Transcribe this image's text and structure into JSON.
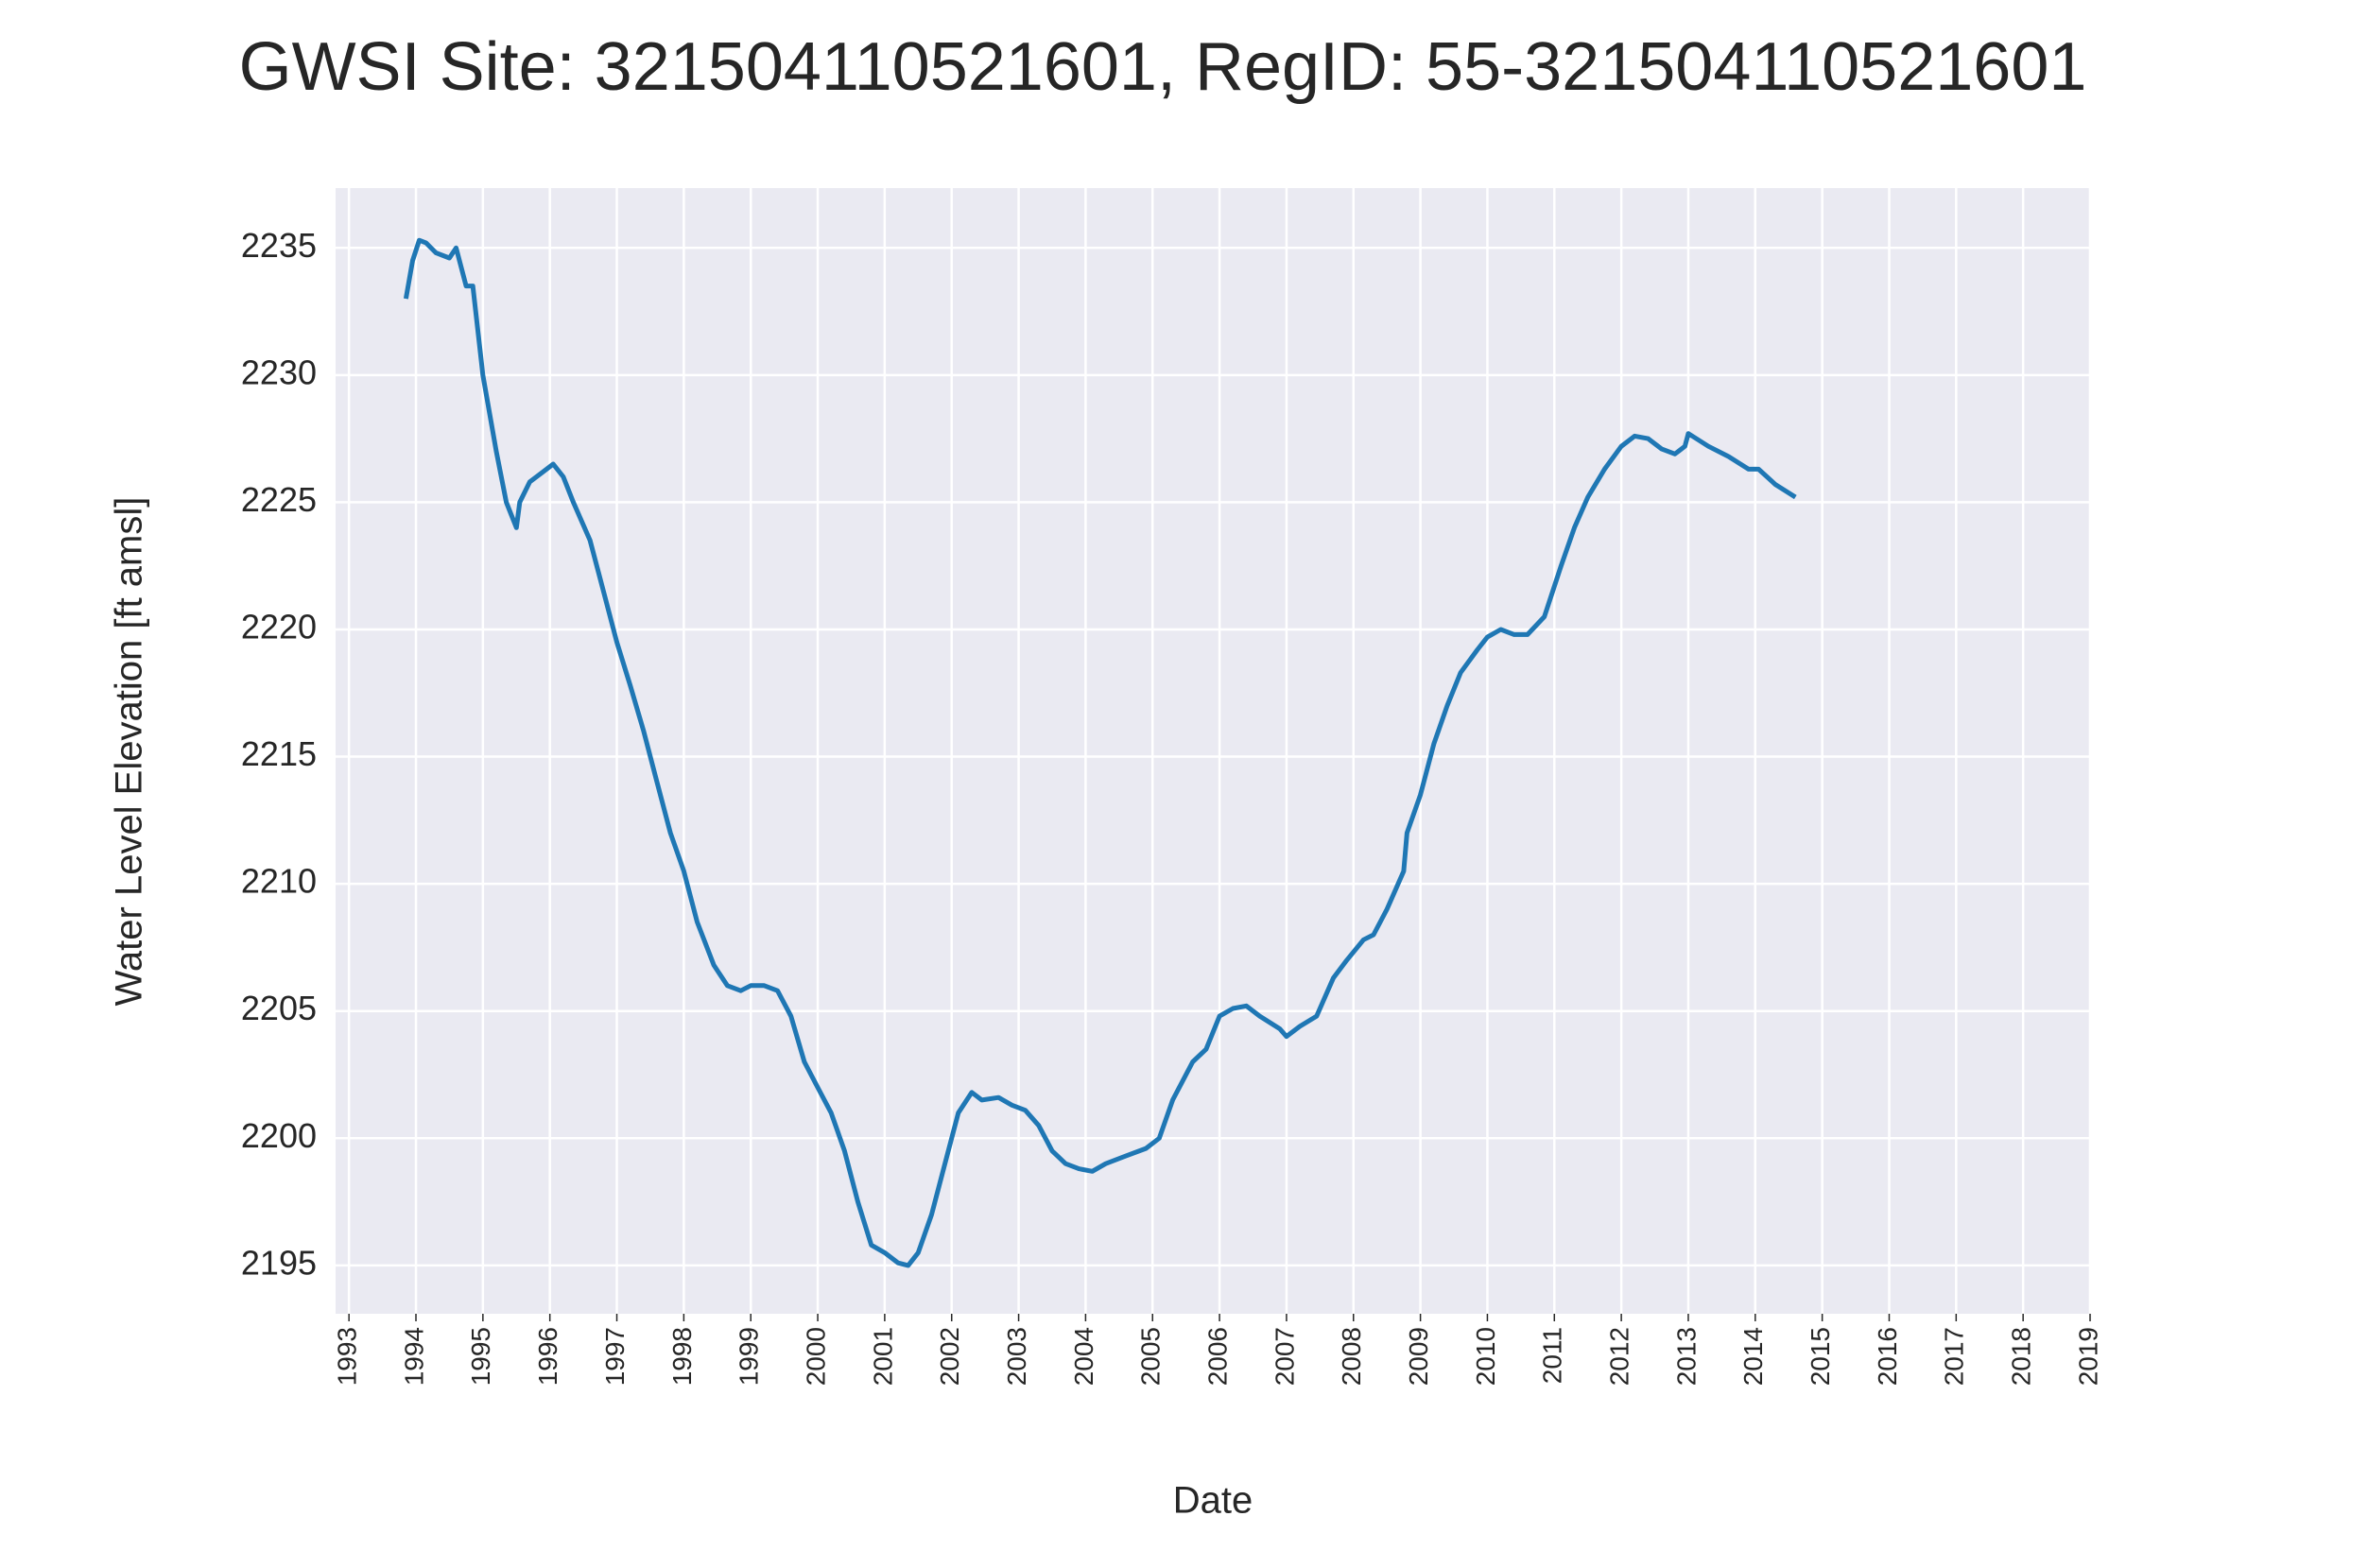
{
  "chart_data": {
    "type": "line",
    "title": "GWSI Site: 321504110521601, RegID: 55-321504110521601",
    "x_label": "Date",
    "y_label": "Water Level Elevation [ft amsl]",
    "color": "#1f77b4",
    "grid": true,
    "x": [
      1993.85,
      1993.95,
      1994.05,
      1994.15,
      1994.3,
      1994.5,
      1994.6,
      1994.75,
      1994.85,
      1995.0,
      1995.2,
      1995.35,
      1995.5,
      1995.55,
      1995.7,
      1995.9,
      1996.05,
      1996.2,
      1996.35,
      1996.6,
      1996.8,
      1997.0,
      1997.2,
      1997.4,
      1997.6,
      1997.8,
      1998.0,
      1998.2,
      1998.45,
      1998.65,
      1998.85,
      1999.0,
      1999.2,
      1999.4,
      1999.6,
      1999.8,
      2000.0,
      2000.2,
      2000.4,
      2000.6,
      2000.8,
      2001.0,
      2001.2,
      2001.35,
      2001.5,
      2001.7,
      2001.9,
      2002.1,
      2002.3,
      2002.45,
      2002.7,
      2002.9,
      2003.1,
      2003.3,
      2003.5,
      2003.7,
      2003.9,
      2004.1,
      2004.3,
      2004.6,
      2004.9,
      2005.1,
      2005.3,
      2005.6,
      2005.8,
      2006.0,
      2006.2,
      2006.4,
      2006.6,
      2006.9,
      2007.0,
      2007.2,
      2007.45,
      2007.7,
      2007.9,
      2008.15,
      2008.3,
      2008.5,
      2008.75,
      2008.8,
      2009.0,
      2009.2,
      2009.4,
      2009.6,
      2009.85,
      2010.0,
      2010.2,
      2010.4,
      2010.6,
      2010.85,
      2011.1,
      2011.3,
      2011.5,
      2011.75,
      2012.0,
      2012.2,
      2012.4,
      2012.6,
      2012.8,
      2012.95,
      2013.0,
      2013.3,
      2013.6,
      2013.9,
      2014.05,
      2014.3,
      2014.6
    ],
    "values": [
      2233,
      2234.5,
      2235.3,
      2235.2,
      2234.8,
      2234.6,
      2235,
      2233.5,
      2233.5,
      2230,
      2227,
      2225,
      2224,
      2225,
      2225.8,
      2226.2,
      2226.5,
      2226,
      2225,
      2223.5,
      2221.5,
      2219.5,
      2217.8,
      2216,
      2214,
      2212,
      2210.5,
      2208.5,
      2206.8,
      2206,
      2205.8,
      2206,
      2206,
      2205.8,
      2204.8,
      2203,
      2202,
      2201,
      2199.5,
      2197.5,
      2195.8,
      2195.5,
      2195.1,
      2195,
      2195.5,
      2197,
      2199,
      2201,
      2201.8,
      2201.5,
      2201.6,
      2201.3,
      2201.1,
      2200.5,
      2199.5,
      2199,
      2198.8,
      2198.7,
      2199,
      2199.3,
      2199.6,
      2200,
      2201.5,
      2203,
      2203.5,
      2204.8,
      2205.1,
      2205.2,
      2204.8,
      2204.3,
      2204,
      2204.4,
      2204.8,
      2206.3,
      2207,
      2207.8,
      2208,
      2209,
      2210.5,
      2212,
      2213.5,
      2215.5,
      2217,
      2218.3,
      2219.2,
      2219.7,
      2220,
      2219.8,
      2219.8,
      2220.5,
      2222.5,
      2224,
      2225.2,
      2226.3,
      2227.2,
      2227.6,
      2227.5,
      2227.1,
      2226.9,
      2227.2,
      2227.7,
      2227.2,
      2226.8,
      2226.3,
      2226.3,
      2225.7,
      2225.2
    ],
    "xlim": [
      1992.8,
      2019
    ],
    "ylim": [
      2193.1,
      2237.35
    ],
    "xticks": [
      1993,
      1994,
      1995,
      1996,
      1997,
      1998,
      1999,
      2000,
      2001,
      2002,
      2003,
      2004,
      2005,
      2006,
      2007,
      2008,
      2009,
      2010,
      2011,
      2012,
      2013,
      2014,
      2015,
      2016,
      2017,
      2018,
      2019
    ],
    "yticks": [
      2195,
      2200,
      2205,
      2210,
      2215,
      2220,
      2225,
      2230,
      2235
    ]
  }
}
